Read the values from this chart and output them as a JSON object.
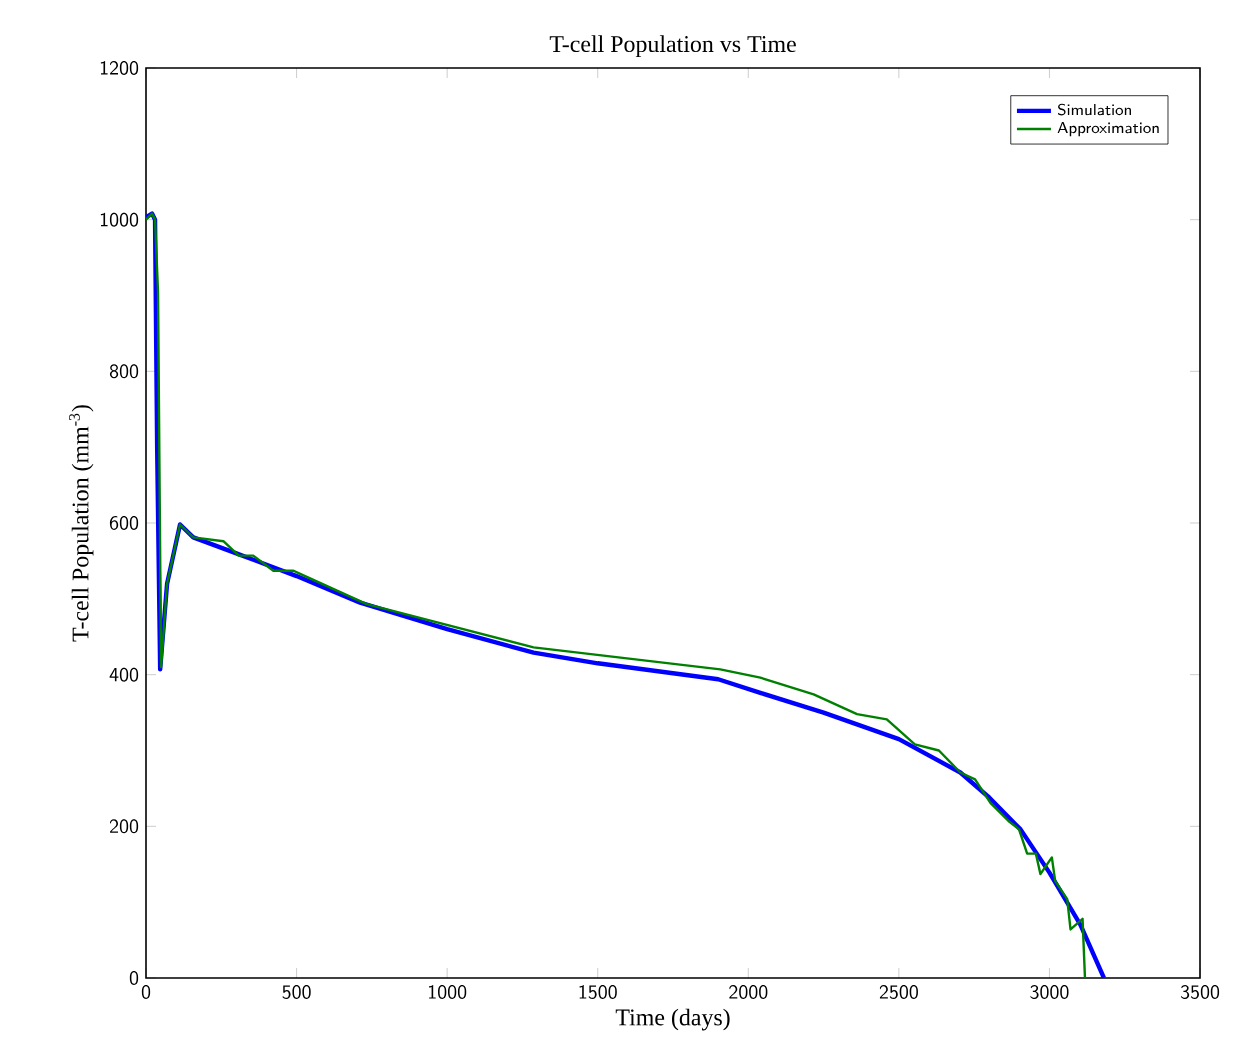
{
  "chart_data": {
    "type": "line",
    "title": "T-cell Population vs Time",
    "xlabel": "Time (days)",
    "ylabel": "T-cell Population (mm$^{-3}$)",
    "xlim": [
      0,
      3500
    ],
    "ylim": [
      0,
      1200
    ],
    "xticks": [
      0,
      500,
      1000,
      1500,
      2000,
      2500,
      3000,
      3500
    ],
    "yticks": [
      0,
      200,
      400,
      600,
      800,
      1000,
      1200
    ],
    "grid": false,
    "legend": "top right",
    "marker": "none",
    "line_style": "solid",
    "series": [
      {
        "name": "Simulation",
        "color": "#0000ff",
        "x": [
          0,
          20,
          30,
          37,
          47,
          70,
          113,
          157,
          300,
          500,
          711,
          1000,
          1287,
          1500,
          1900,
          2040,
          2250,
          2500,
          2704,
          2800,
          2904,
          3000,
          3103,
          3181
        ],
        "values": [
          1003,
          1008,
          1000,
          700,
          407,
          520,
          598,
          581,
          560,
          530,
          495,
          460,
          429,
          415,
          394,
          376,
          350,
          315,
          271,
          238,
          196,
          139,
          70,
          0
        ]
      },
      {
        "name": "Approximation",
        "color": "#008000",
        "x": [
          0,
          20,
          30,
          40,
          50,
          70,
          113,
          157,
          257,
          308,
          356,
          423,
          490,
          512,
          733,
          1287,
          1907,
          2040,
          2217,
          2361,
          2460,
          2553,
          2633,
          2704,
          2753,
          2804,
          2864,
          2899,
          2926,
          2955,
          2970,
          3008,
          3019,
          3059,
          3070,
          3110,
          3118
        ],
        "values": [
          1000,
          1008,
          1000,
          904,
          410,
          520,
          598,
          581,
          576,
          557,
          557,
          537,
          537,
          533,
          493,
          436,
          407,
          396,
          374,
          348,
          341,
          308,
          300,
          271,
          262,
          231,
          207,
          196,
          164,
          164,
          137,
          159,
          128,
          104,
          64,
          78,
          0
        ]
      }
    ]
  }
}
